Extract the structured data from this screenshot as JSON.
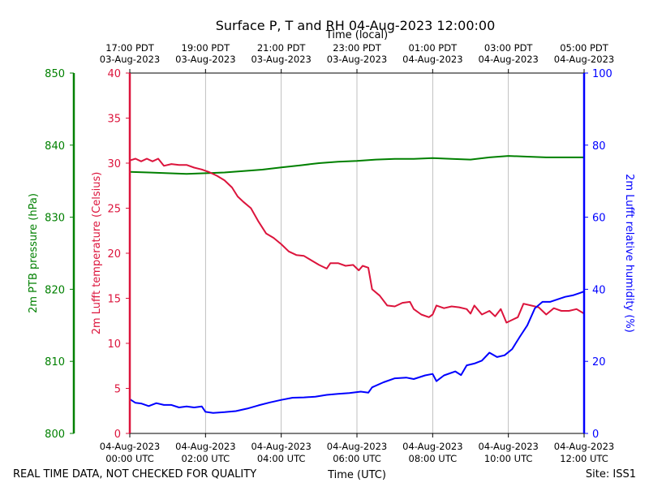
{
  "chart_data": {
    "type": "line",
    "title": "Surface P, T and RH 04-Aug-2023 12:00:00",
    "top_axis_label": "Time (local)",
    "xlabel": "Time (UTC)",
    "footer_left": "REAL TIME DATA, NOT CHECKED FOR QUALITY",
    "footer_right": "Site: ISS1",
    "x_range_hours": [
      0,
      12
    ],
    "x_ticks_utc": [
      {
        "h": 0,
        "line1": "04-Aug-2023",
        "line2": "00:00 UTC"
      },
      {
        "h": 2,
        "line1": "04-Aug-2023",
        "line2": "02:00 UTC"
      },
      {
        "h": 4,
        "line1": "04-Aug-2023",
        "line2": "04:00 UTC"
      },
      {
        "h": 6,
        "line1": "04-Aug-2023",
        "line2": "06:00 UTC"
      },
      {
        "h": 8,
        "line1": "04-Aug-2023",
        "line2": "08:00 UTC"
      },
      {
        "h": 10,
        "line1": "04-Aug-2023",
        "line2": "10:00 UTC"
      },
      {
        "h": 12,
        "line1": "04-Aug-2023",
        "line2": "12:00 UTC"
      }
    ],
    "x_ticks_local": [
      {
        "h": 0,
        "line1": "17:00 PDT",
        "line2": "03-Aug-2023"
      },
      {
        "h": 2,
        "line1": "19:00 PDT",
        "line2": "03-Aug-2023"
      },
      {
        "h": 4,
        "line1": "21:00 PDT",
        "line2": "03-Aug-2023"
      },
      {
        "h": 6,
        "line1": "23:00 PDT",
        "line2": "03-Aug-2023"
      },
      {
        "h": 8,
        "line1": "01:00 PDT",
        "line2": "04-Aug-2023"
      },
      {
        "h": 10,
        "line1": "03:00 PDT",
        "line2": "04-Aug-2023"
      },
      {
        "h": 12,
        "line1": "05:00 PDT",
        "line2": "04-Aug-2023"
      }
    ],
    "axes": {
      "pressure": {
        "label": "2m PTB pressure (hPa)",
        "range": [
          800,
          850
        ],
        "ticks": [
          800,
          810,
          820,
          830,
          840,
          850
        ],
        "color": "#008000"
      },
      "temperature": {
        "label": "2m Lufft temperature (Celsius)",
        "range": [
          0,
          40
        ],
        "ticks": [
          0,
          5,
          10,
          15,
          20,
          25,
          30,
          35,
          40
        ],
        "color": "#dc143c"
      },
      "humidity": {
        "label": "2m Lufft relative humidity (%)",
        "range": [
          0,
          100
        ],
        "ticks": [
          0,
          20,
          40,
          60,
          80,
          100
        ],
        "color": "#0000ff"
      }
    },
    "series": [
      {
        "name": "2m PTB pressure (hPa)",
        "axis": "pressure",
        "color": "#008000",
        "points": [
          [
            0,
            836.3
          ],
          [
            0.5,
            836.2
          ],
          [
            1,
            836.1
          ],
          [
            1.5,
            836.0
          ],
          [
            2,
            836.1
          ],
          [
            2.5,
            836.2
          ],
          [
            3,
            836.4
          ],
          [
            3.5,
            836.6
          ],
          [
            4,
            836.9
          ],
          [
            4.5,
            837.2
          ],
          [
            5,
            837.5
          ],
          [
            5.5,
            837.7
          ],
          [
            6,
            837.8
          ],
          [
            6.5,
            838.0
          ],
          [
            7,
            838.1
          ],
          [
            7.5,
            838.1
          ],
          [
            8,
            838.2
          ],
          [
            8.5,
            838.1
          ],
          [
            9,
            838.0
          ],
          [
            9.5,
            838.3
          ],
          [
            10,
            838.5
          ],
          [
            10.5,
            838.4
          ],
          [
            11,
            838.3
          ],
          [
            11.5,
            838.3
          ],
          [
            12,
            838.3
          ]
        ]
      },
      {
        "name": "2m Lufft temperature (Celsius)",
        "axis": "temperature",
        "color": "#dc143c",
        "points": [
          [
            0,
            30.3
          ],
          [
            0.15,
            30.5
          ],
          [
            0.3,
            30.2
          ],
          [
            0.45,
            30.5
          ],
          [
            0.6,
            30.2
          ],
          [
            0.75,
            30.5
          ],
          [
            0.9,
            29.7
          ],
          [
            1.1,
            29.9
          ],
          [
            1.3,
            29.8
          ],
          [
            1.5,
            29.8
          ],
          [
            1.7,
            29.5
          ],
          [
            1.9,
            29.3
          ],
          [
            2.1,
            29.0
          ],
          [
            2.3,
            28.6
          ],
          [
            2.5,
            28.1
          ],
          [
            2.7,
            27.3
          ],
          [
            2.85,
            26.3
          ],
          [
            3.0,
            25.7
          ],
          [
            3.2,
            25.0
          ],
          [
            3.4,
            23.5
          ],
          [
            3.6,
            22.2
          ],
          [
            3.8,
            21.7
          ],
          [
            4.0,
            21.0
          ],
          [
            4.2,
            20.2
          ],
          [
            4.4,
            19.8
          ],
          [
            4.6,
            19.7
          ],
          [
            4.8,
            19.2
          ],
          [
            5.0,
            18.7
          ],
          [
            5.2,
            18.3
          ],
          [
            5.3,
            18.9
          ],
          [
            5.5,
            18.9
          ],
          [
            5.7,
            18.6
          ],
          [
            5.9,
            18.7
          ],
          [
            6.05,
            18.1
          ],
          [
            6.15,
            18.6
          ],
          [
            6.3,
            18.4
          ],
          [
            6.4,
            16.0
          ],
          [
            6.6,
            15.3
          ],
          [
            6.8,
            14.2
          ],
          [
            7.0,
            14.1
          ],
          [
            7.2,
            14.5
          ],
          [
            7.4,
            14.6
          ],
          [
            7.5,
            13.8
          ],
          [
            7.7,
            13.2
          ],
          [
            7.9,
            12.9
          ],
          [
            8.0,
            13.2
          ],
          [
            8.1,
            14.2
          ],
          [
            8.3,
            13.9
          ],
          [
            8.5,
            14.1
          ],
          [
            8.7,
            14.0
          ],
          [
            8.9,
            13.8
          ],
          [
            9.0,
            13.3
          ],
          [
            9.1,
            14.2
          ],
          [
            9.3,
            13.2
          ],
          [
            9.5,
            13.6
          ],
          [
            9.65,
            13.0
          ],
          [
            9.8,
            13.8
          ],
          [
            9.95,
            12.3
          ],
          [
            10.1,
            12.6
          ],
          [
            10.25,
            12.9
          ],
          [
            10.4,
            14.4
          ],
          [
            10.6,
            14.2
          ],
          [
            10.8,
            14.0
          ],
          [
            11.0,
            13.2
          ],
          [
            11.2,
            13.9
          ],
          [
            11.4,
            13.6
          ],
          [
            11.6,
            13.6
          ],
          [
            11.8,
            13.8
          ],
          [
            12.0,
            13.3
          ]
        ]
      },
      {
        "name": "2m Lufft relative humidity (%)",
        "axis": "humidity",
        "color": "#0000ff",
        "points": [
          [
            0,
            9.5
          ],
          [
            0.15,
            8.5
          ],
          [
            0.3,
            8.3
          ],
          [
            0.5,
            7.6
          ],
          [
            0.7,
            8.4
          ],
          [
            0.9,
            7.9
          ],
          [
            1.1,
            7.9
          ],
          [
            1.3,
            7.2
          ],
          [
            1.5,
            7.5
          ],
          [
            1.7,
            7.2
          ],
          [
            1.9,
            7.5
          ],
          [
            2.0,
            6.0
          ],
          [
            2.2,
            5.7
          ],
          [
            2.5,
            5.9
          ],
          [
            2.8,
            6.2
          ],
          [
            3.1,
            6.9
          ],
          [
            3.4,
            7.8
          ],
          [
            3.7,
            8.6
          ],
          [
            4.0,
            9.3
          ],
          [
            4.3,
            9.9
          ],
          [
            4.6,
            10.0
          ],
          [
            4.9,
            10.2
          ],
          [
            5.2,
            10.7
          ],
          [
            5.5,
            11.0
          ],
          [
            5.8,
            11.2
          ],
          [
            6.1,
            11.6
          ],
          [
            6.3,
            11.3
          ],
          [
            6.4,
            12.8
          ],
          [
            6.7,
            14.2
          ],
          [
            7.0,
            15.3
          ],
          [
            7.3,
            15.5
          ],
          [
            7.5,
            15.1
          ],
          [
            7.8,
            16.1
          ],
          [
            8.0,
            16.5
          ],
          [
            8.1,
            14.5
          ],
          [
            8.3,
            16.1
          ],
          [
            8.6,
            17.2
          ],
          [
            8.75,
            16.2
          ],
          [
            8.9,
            18.9
          ],
          [
            9.1,
            19.4
          ],
          [
            9.3,
            20.2
          ],
          [
            9.5,
            22.4
          ],
          [
            9.7,
            21.2
          ],
          [
            9.9,
            21.7
          ],
          [
            10.1,
            23.4
          ],
          [
            10.3,
            26.8
          ],
          [
            10.5,
            30.0
          ],
          [
            10.7,
            34.7
          ],
          [
            10.9,
            36.5
          ],
          [
            11.1,
            36.5
          ],
          [
            11.3,
            37.2
          ],
          [
            11.5,
            37.9
          ],
          [
            11.7,
            38.3
          ],
          [
            11.9,
            39.0
          ],
          [
            12.0,
            39.4
          ]
        ]
      }
    ]
  }
}
